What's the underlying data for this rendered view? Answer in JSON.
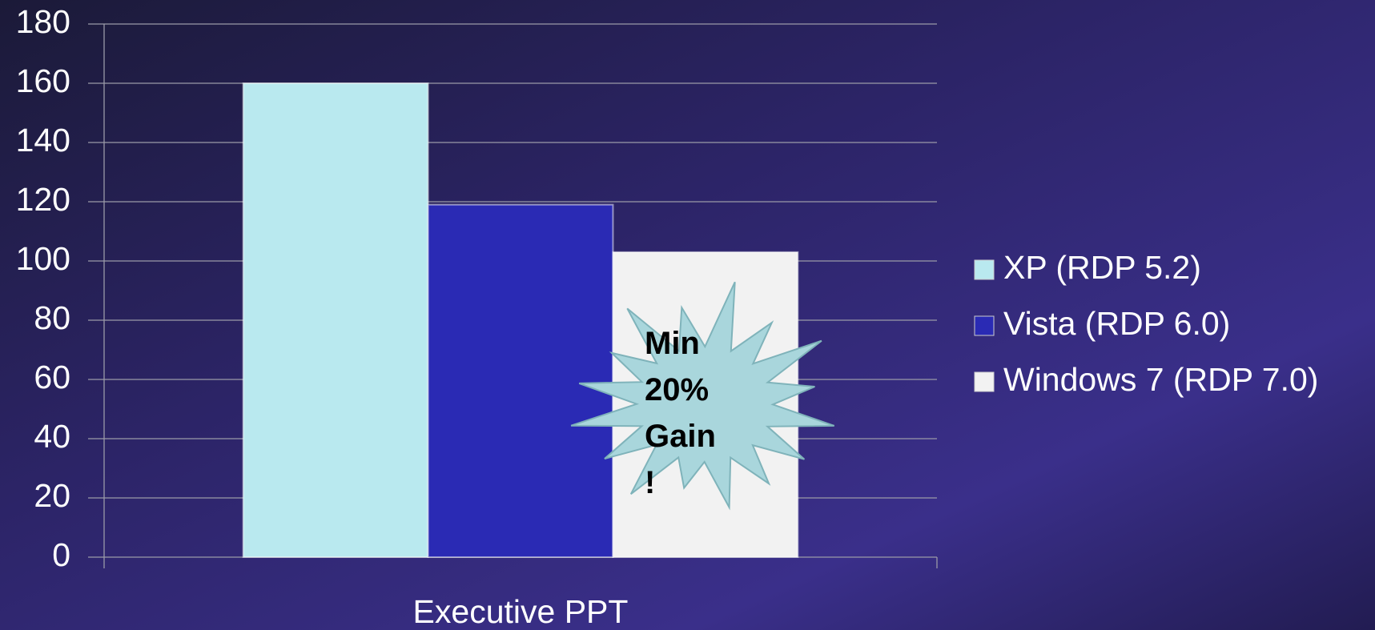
{
  "chart_data": {
    "type": "bar",
    "categories": [
      "Executive PPT"
    ],
    "series": [
      {
        "name": "XP (RDP 5.2)",
        "color": "#b9e9ef",
        "values": [
          160
        ]
      },
      {
        "name": "Vista (RDP 6.0)",
        "color": "#2a2ab4",
        "values": [
          119
        ]
      },
      {
        "name": "Windows 7 (RDP 7.0)",
        "color": "#f2f2f2",
        "values": [
          103
        ]
      }
    ],
    "ylim": [
      0,
      180
    ],
    "yticks": [
      0,
      20,
      40,
      60,
      80,
      100,
      120,
      140,
      160,
      180
    ],
    "grid": true,
    "legend": "right",
    "annotation": "Min 20% Gain !"
  }
}
